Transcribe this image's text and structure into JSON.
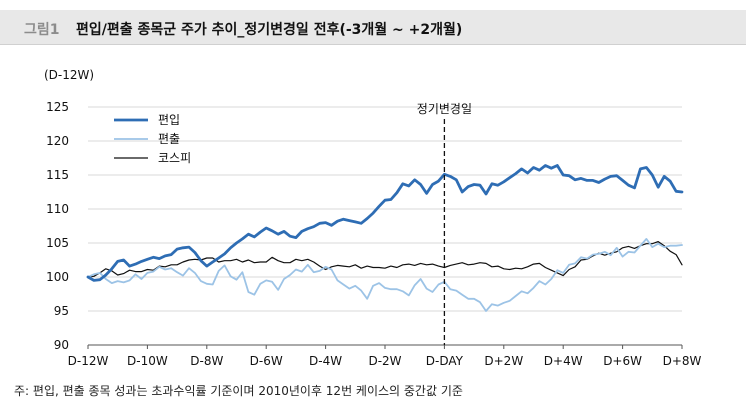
{
  "figure": {
    "label": "그림1",
    "title": "편입/편출 종목군 주가 추이_정기변경일 전후(-3개월 ~ +2개월)",
    "footnote": "주: 편입, 편출 종목 성과는 초과수익률 기준이며 2010년이후 12번 케이스의 중간값 기준"
  },
  "colors": {
    "inclusion": "#2e6db4",
    "exclusion": "#9cc3e6",
    "kospi": "#111111",
    "grid": "#d9d9d9",
    "annotation_line": "#111111"
  },
  "chart_data": {
    "type": "line",
    "title": "",
    "unit_label": "(D-12W)",
    "xlabel": "",
    "ylabel": "",
    "ylim": [
      90,
      125
    ],
    "yticks": [
      90,
      95,
      100,
      105,
      110,
      115,
      120,
      125
    ],
    "xlim": [
      -12,
      8
    ],
    "xticks": [
      {
        "pos": -12,
        "label": "D-12W"
      },
      {
        "pos": -10,
        "label": "D-10W"
      },
      {
        "pos": -8,
        "label": "D-8W"
      },
      {
        "pos": -6,
        "label": "D-6W"
      },
      {
        "pos": -4,
        "label": "D-4W"
      },
      {
        "pos": -2,
        "label": "D-2W"
      },
      {
        "pos": 0,
        "label": "D-DAY"
      },
      {
        "pos": 2,
        "label": "D+2W"
      },
      {
        "pos": 4,
        "label": "D+4W"
      },
      {
        "pos": 6,
        "label": "D+6W"
      },
      {
        "pos": 8,
        "label": "D+8W"
      }
    ],
    "annotation": {
      "x": 0,
      "label": "정기변경일"
    },
    "legend": "top-left",
    "series": [
      {
        "name": "편입",
        "key": "inclusion",
        "x": [
          -12,
          -11.8,
          -11.6,
          -11.4,
          -11.2,
          -11,
          -10.8,
          -10.6,
          -10.4,
          -10.2,
          -10,
          -9.8,
          -9.6,
          -9.4,
          -9.2,
          -9,
          -8.8,
          -8.6,
          -8.4,
          -8.2,
          -8,
          -7.8,
          -7.6,
          -7.4,
          -7.2,
          -7,
          -6.8,
          -6.6,
          -6.4,
          -6.2,
          -6,
          -5.8,
          -5.6,
          -5.4,
          -5.2,
          -5,
          -4.8,
          -4.6,
          -4.4,
          -4.2,
          -4,
          -3.8,
          -3.6,
          -3.4,
          -3.2,
          -3,
          -2.8,
          -2.6,
          -2.4,
          -2.2,
          -2,
          -1.8,
          -1.6,
          -1.4,
          -1.2,
          -1,
          -0.8,
          -0.6,
          -0.4,
          -0.2,
          0,
          0.2,
          0.4,
          0.6,
          0.8,
          1,
          1.2,
          1.4,
          1.6,
          1.8,
          2,
          2.2,
          2.4,
          2.6,
          2.8,
          3,
          3.2,
          3.4,
          3.6,
          3.8,
          4,
          4.2,
          4.4,
          4.6,
          4.8,
          5,
          5.2,
          5.4,
          5.6,
          5.8,
          6,
          6.2,
          6.4,
          6.6,
          6.8,
          7,
          7.2,
          7.4,
          7.6,
          7.8,
          8
        ],
        "values": [
          100,
          99.5,
          99.6,
          100.3,
          101.2,
          102.3,
          102.5,
          101.6,
          101.9,
          102.3,
          102.6,
          102.9,
          102.7,
          103.1,
          103.3,
          104.1,
          104.3,
          104.4,
          103.6,
          102.4,
          101.6,
          102.2,
          102.8,
          103.4,
          104.3,
          105,
          105.6,
          106.3,
          105.9,
          106.6,
          107.2,
          106.8,
          106.3,
          106.7,
          106,
          105.8,
          106.7,
          107.1,
          107.4,
          107.9,
          108,
          107.6,
          108.2,
          108.5,
          108.3,
          108.1,
          107.9,
          108.6,
          109.4,
          110.4,
          111.3,
          111.4,
          112.4,
          113.7,
          113.4,
          114.3,
          113.6,
          112.3,
          113.6,
          114.1,
          115.1,
          114.8,
          114.3,
          112.5,
          113.3,
          113.6,
          113.5,
          112.2,
          113.7,
          113.5,
          114,
          114.6,
          115.2,
          115.9,
          115.3,
          116.1,
          115.7,
          116.4,
          116,
          116.4,
          115,
          114.9,
          114.3,
          114.5,
          114.2,
          114.2,
          113.9,
          114.4,
          114.8,
          114.9,
          114.2,
          113.5,
          113.1,
          115.9,
          116.1,
          115,
          113.2,
          114.8,
          114.1,
          112.6,
          112.5
        ]
      },
      {
        "name": "편출",
        "key": "exclusion",
        "x": [
          -12,
          -11.8,
          -11.6,
          -11.4,
          -11.2,
          -11,
          -10.8,
          -10.6,
          -10.4,
          -10.2,
          -10,
          -9.8,
          -9.6,
          -9.4,
          -9.2,
          -9,
          -8.8,
          -8.6,
          -8.4,
          -8.2,
          -8,
          -7.8,
          -7.6,
          -7.4,
          -7.2,
          -7,
          -6.8,
          -6.6,
          -6.4,
          -6.2,
          -6,
          -5.8,
          -5.6,
          -5.4,
          -5.2,
          -5,
          -4.8,
          -4.6,
          -4.4,
          -4.2,
          -4,
          -3.8,
          -3.6,
          -3.4,
          -3.2,
          -3,
          -2.8,
          -2.6,
          -2.4,
          -2.2,
          -2,
          -1.8,
          -1.6,
          -1.4,
          -1.2,
          -1,
          -0.8,
          -0.6,
          -0.4,
          -0.2,
          0,
          0.2,
          0.4,
          0.6,
          0.8,
          1,
          1.2,
          1.4,
          1.6,
          1.8,
          2,
          2.2,
          2.4,
          2.6,
          2.8,
          3,
          3.2,
          3.4,
          3.6,
          3.8,
          4,
          4.2,
          4.4,
          4.6,
          4.8,
          5,
          5.2,
          5.4,
          5.6,
          5.8,
          6,
          6.2,
          6.4,
          6.6,
          6.8,
          7,
          7.2,
          7.4,
          7.6,
          7.8,
          8
        ],
        "values": [
          100,
          100.4,
          100.6,
          99.7,
          99.1,
          99.4,
          99.2,
          99.5,
          100.4,
          99.7,
          100.6,
          100.8,
          101.5,
          101.1,
          101.3,
          100.7,
          100.2,
          101.3,
          100.6,
          99.4,
          99,
          98.9,
          100.9,
          101.7,
          100.1,
          99.6,
          100.7,
          97.8,
          97.4,
          99,
          99.5,
          99.3,
          98.1,
          99.7,
          100.3,
          101.1,
          100.8,
          101.8,
          100.7,
          100.9,
          101.5,
          101.1,
          99.5,
          98.9,
          98.3,
          98.7,
          98,
          96.8,
          98.7,
          99.1,
          98.4,
          98.2,
          98.2,
          97.9,
          97.3,
          98.8,
          99.7,
          98.3,
          97.8,
          98.9,
          99.3,
          98.2,
          98,
          97.4,
          96.8,
          96.8,
          96.3,
          95,
          96,
          95.8,
          96.2,
          96.5,
          97.2,
          97.9,
          97.6,
          98.4,
          99.4,
          98.9,
          99.7,
          101,
          100.6,
          101.8,
          102,
          102.9,
          102.7,
          103.3,
          103.4,
          103.7,
          103.2,
          104.3,
          103,
          103.7,
          103.6,
          104.6,
          105.6,
          104.4,
          104.9,
          104.4,
          104.6,
          104.6,
          104.7
        ]
      },
      {
        "name": "코스피",
        "key": "kospi",
        "x": [
          -12,
          -11.8,
          -11.6,
          -11.4,
          -11.2,
          -11,
          -10.8,
          -10.6,
          -10.4,
          -10.2,
          -10,
          -9.8,
          -9.6,
          -9.4,
          -9.2,
          -9,
          -8.8,
          -8.6,
          -8.4,
          -8.2,
          -8,
          -7.8,
          -7.6,
          -7.4,
          -7.2,
          -7,
          -6.8,
          -6.6,
          -6.4,
          -6.2,
          -6,
          -5.8,
          -5.6,
          -5.4,
          -5.2,
          -5,
          -4.8,
          -4.6,
          -4.4,
          -4.2,
          -4,
          -3.8,
          -3.6,
          -3.4,
          -3.2,
          -3,
          -2.8,
          -2.6,
          -2.4,
          -2.2,
          -2,
          -1.8,
          -1.6,
          -1.4,
          -1.2,
          -1,
          -0.8,
          -0.6,
          -0.4,
          -0.2,
          0,
          0.2,
          0.4,
          0.6,
          0.8,
          1,
          1.2,
          1.4,
          1.6,
          1.8,
          2,
          2.2,
          2.4,
          2.6,
          2.8,
          3,
          3.2,
          3.4,
          3.6,
          3.8,
          4,
          4.2,
          4.4,
          4.6,
          4.8,
          5,
          5.2,
          5.4,
          5.6,
          5.8,
          6,
          6.2,
          6.4,
          6.6,
          6.8,
          7,
          7.2,
          7.4,
          7.6,
          7.8,
          8
        ],
        "values": [
          100,
          100.1,
          100.6,
          101.2,
          100.9,
          100.3,
          100.5,
          101,
          100.8,
          100.8,
          101.1,
          101,
          101.6,
          101.5,
          101.8,
          101.8,
          102.2,
          102.5,
          102.6,
          102.5,
          102.8,
          102.8,
          102.2,
          102.4,
          102.4,
          102.6,
          102.2,
          102.5,
          102.1,
          102.2,
          102.2,
          102.9,
          102.4,
          102.1,
          102.1,
          102.6,
          102.4,
          102.6,
          102.2,
          101.6,
          101.1,
          101.5,
          101.7,
          101.6,
          101.5,
          101.8,
          101.3,
          101.6,
          101.4,
          101.4,
          101.3,
          101.6,
          101.4,
          101.8,
          101.9,
          101.7,
          102,
          101.8,
          101.9,
          101.6,
          101.4,
          101.7,
          101.9,
          102.1,
          101.8,
          101.9,
          102.1,
          102,
          101.5,
          101.6,
          101.2,
          101.1,
          101.3,
          101.2,
          101.5,
          101.9,
          102,
          101.4,
          101,
          100.6,
          100.2,
          101.1,
          101.5,
          102.5,
          102.6,
          103.1,
          103.5,
          103.2,
          103.5,
          103.7,
          104.3,
          104.5,
          104.2,
          104.6,
          104.9,
          104.9,
          105.2,
          104.6,
          103.8,
          103.3,
          101.8
        ]
      }
    ]
  }
}
